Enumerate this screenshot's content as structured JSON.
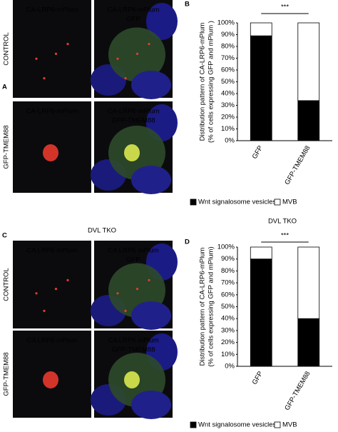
{
  "panels": [
    {
      "letter": "A",
      "row_labels": [
        "CONTROL",
        "GFP-TMEM88"
      ],
      "image_labels": [
        [
          "CA-LRP6-mPlum"
        ],
        [
          "CA-LRP6-mPlum",
          "GFP"
        ],
        [
          "CA-LRP6-mPlum"
        ],
        [
          "CA-LRP6-mPlum",
          "GFP-TMEM88"
        ]
      ]
    },
    {
      "letter": "C",
      "title": "DVL TKO",
      "row_labels": [
        "CONTROL",
        "GFP-TMEM88"
      ],
      "image_labels": [
        [
          "CA LRP6 mPlum"
        ],
        [
          "CA LRP6 mPlum",
          "GFP"
        ],
        [
          "CA LRP6 mPlum"
        ],
        [
          "CA LRP6 mPlum",
          "GFP-TMEM88"
        ]
      ]
    }
  ],
  "chart_data": [
    {
      "type": "stacked_bar",
      "panel_letter": "B",
      "y_label": [
        "Distribution pattern of CA-LRP6-mPlum",
        "(% of cells expressing GFP and mPlum )"
      ],
      "significance": "***",
      "categories": [
        "GFP",
        "GFP-TMEM88"
      ],
      "series": [
        {
          "name": "Wnt signalosome vesicles",
          "color": "#000000",
          "values": [
            89,
            34
          ]
        },
        {
          "name": "MVB",
          "color": "#ffffff",
          "values": [
            11,
            66
          ]
        }
      ],
      "ylim": [
        0,
        100
      ],
      "yticks": [
        {
          "value": 0,
          "label": "0%"
        },
        {
          "value": 10,
          "label": "10%"
        },
        {
          "value": 20,
          "label": "20%"
        },
        {
          "value": 30,
          "label": "30%"
        },
        {
          "value": 40,
          "label": "40%"
        },
        {
          "value": 50,
          "label": "50%"
        },
        {
          "value": 60,
          "label": "60%"
        },
        {
          "value": 70,
          "label": "70%"
        },
        {
          "value": 80,
          "label": "80%"
        },
        {
          "value": 90,
          "label": "90%"
        },
        {
          "value": 100,
          "label": "100%"
        }
      ],
      "legend": "bottom"
    },
    {
      "type": "stacked_bar",
      "panel_letter": "D",
      "title": "DVL TKO",
      "y_label": [
        "Distribution pattern of CA-LRP6-mPlum",
        "(% of cells expressing GFP and mPlum)"
      ],
      "significance": "***",
      "categories": [
        "GFP",
        "GFP-TMEM88"
      ],
      "series": [
        {
          "name": "Wnt signalosome vesicles",
          "color": "#000000",
          "values": [
            90,
            40
          ]
        },
        {
          "name": "MVB",
          "color": "#ffffff",
          "values": [
            10,
            60
          ]
        }
      ],
      "ylim": [
        0,
        100
      ],
      "yticks": [
        {
          "value": 0,
          "label": "0%"
        },
        {
          "value": 10,
          "label": "10%"
        },
        {
          "value": 20,
          "label": "20%"
        },
        {
          "value": 30,
          "label": "30%"
        },
        {
          "value": 40,
          "label": "40%"
        },
        {
          "value": 50,
          "label": "50%"
        },
        {
          "value": 60,
          "label": "60%"
        },
        {
          "value": 70,
          "label": "70%"
        },
        {
          "value": 80,
          "label": "80%"
        },
        {
          "value": 90,
          "label": "90%"
        },
        {
          "value": 100,
          "label": "100%"
        }
      ],
      "legend": "bottom"
    }
  ]
}
